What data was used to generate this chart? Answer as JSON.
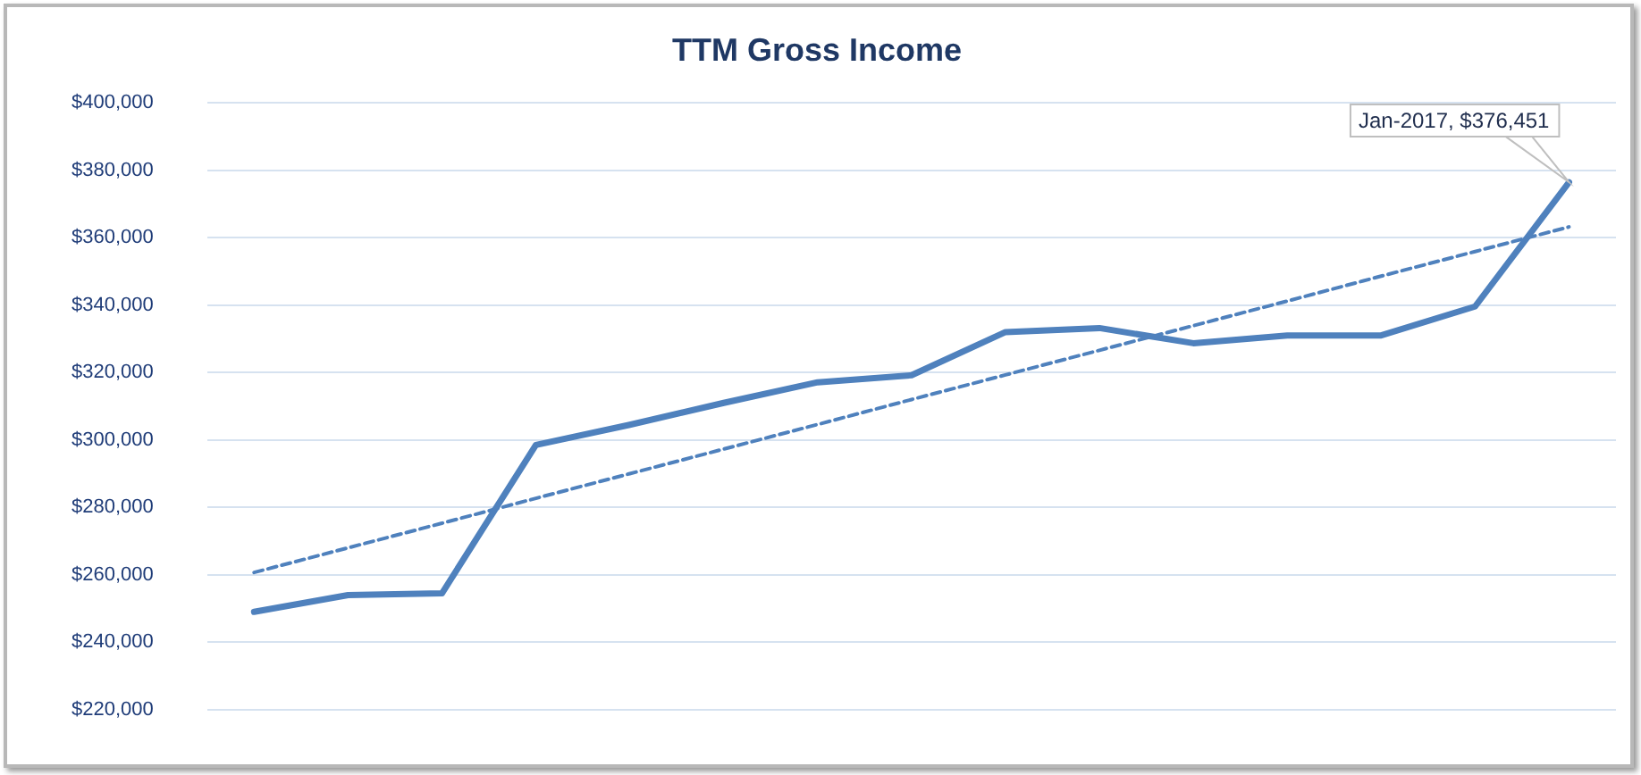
{
  "chart_data": {
    "type": "line",
    "title": "TTM Gross Income",
    "categories": [
      null,
      null,
      null,
      null,
      null,
      null,
      null,
      null,
      null,
      null,
      null,
      null,
      null,
      null,
      null
    ],
    "series": [
      {
        "color": "#4f81bd",
        "line_style": "solid",
        "values": [
          249000,
          254000,
          254500,
          298500,
          304500,
          311000,
          317100,
          319200,
          332000,
          333200,
          328700,
          331000,
          331000,
          339600,
          376451
        ]
      },
      {
        "type": "line",
        "color": "#4f81bd",
        "line_style": "dashed",
        "values": [
          260700,
          268000,
          275300,
          282700,
          290000,
          297300,
          304600,
          312000,
          319300,
          326600,
          333900,
          341200,
          348600,
          355900,
          363200
        ]
      }
    ],
    "ylim": [
      220000,
      400000
    ],
    "yticks": [
      {
        "value": 220000,
        "label": "$220,000"
      },
      {
        "value": 240000,
        "label": "$240,000"
      },
      {
        "value": 260000,
        "label": "$260,000"
      },
      {
        "value": 280000,
        "label": "$280,000"
      },
      {
        "value": 300000,
        "label": "$300,000"
      },
      {
        "value": 320000,
        "label": "$320,000"
      },
      {
        "value": 340000,
        "label": "$340,000"
      },
      {
        "value": 360000,
        "label": "$360,000"
      },
      {
        "value": 380000,
        "label": "$380,000"
      },
      {
        "value": 400000,
        "label": "$400,000"
      }
    ],
    "grid": "y",
    "legend": false,
    "marker": "none",
    "annotations": [
      "Jan-2017, $376,451"
    ]
  }
}
